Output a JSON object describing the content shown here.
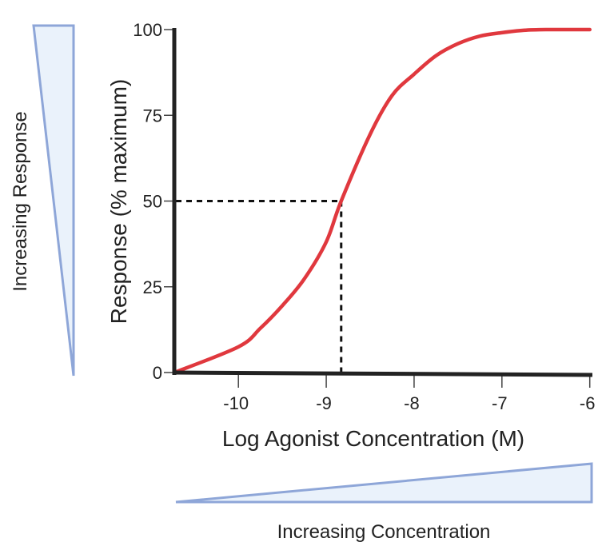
{
  "chart_data": {
    "type": "line",
    "title": "",
    "xlabel": "Log Agonist Concentration (M)",
    "ylabel": "Response (% maximum)",
    "xlim": [
      -10.73,
      -5.97
    ],
    "ylim": [
      0,
      100
    ],
    "x_ticks": [
      -10,
      -9,
      -8,
      -7,
      -6
    ],
    "x_tick_labels": [
      "-10",
      "-9",
      "-8",
      "-7",
      "-6"
    ],
    "y_ticks": [
      0,
      25,
      50,
      75,
      100
    ],
    "y_tick_labels": [
      "0",
      "25",
      "50",
      "75",
      "100"
    ],
    "grid": false,
    "series": [
      {
        "color": "#e0383e",
        "x": [
          -10.73,
          -10,
          -9.75,
          -9.5,
          -9.25,
          -9,
          -8.83,
          -8.5,
          -8.25,
          -8,
          -7.75,
          -7.5,
          -7.25,
          -7,
          -6.75,
          -6.5,
          -6
        ],
        "y": [
          0,
          7.5,
          12.9,
          19.5,
          27.3,
          38.1,
          50,
          69.5,
          80.8,
          87,
          92.4,
          95.9,
          98.1,
          99.1,
          99.8,
          100,
          100
        ]
      }
    ],
    "annotations": {
      "ec50": {
        "x": -8.83,
        "y": 50,
        "style": "dashed",
        "color": "#111111"
      }
    },
    "side_labels": {
      "response": "Increasing Response",
      "concentration": "Increasing Concentration"
    },
    "wedge_colors": {
      "fill": "#eaf2fb",
      "stroke": "#8ea6d8"
    }
  }
}
